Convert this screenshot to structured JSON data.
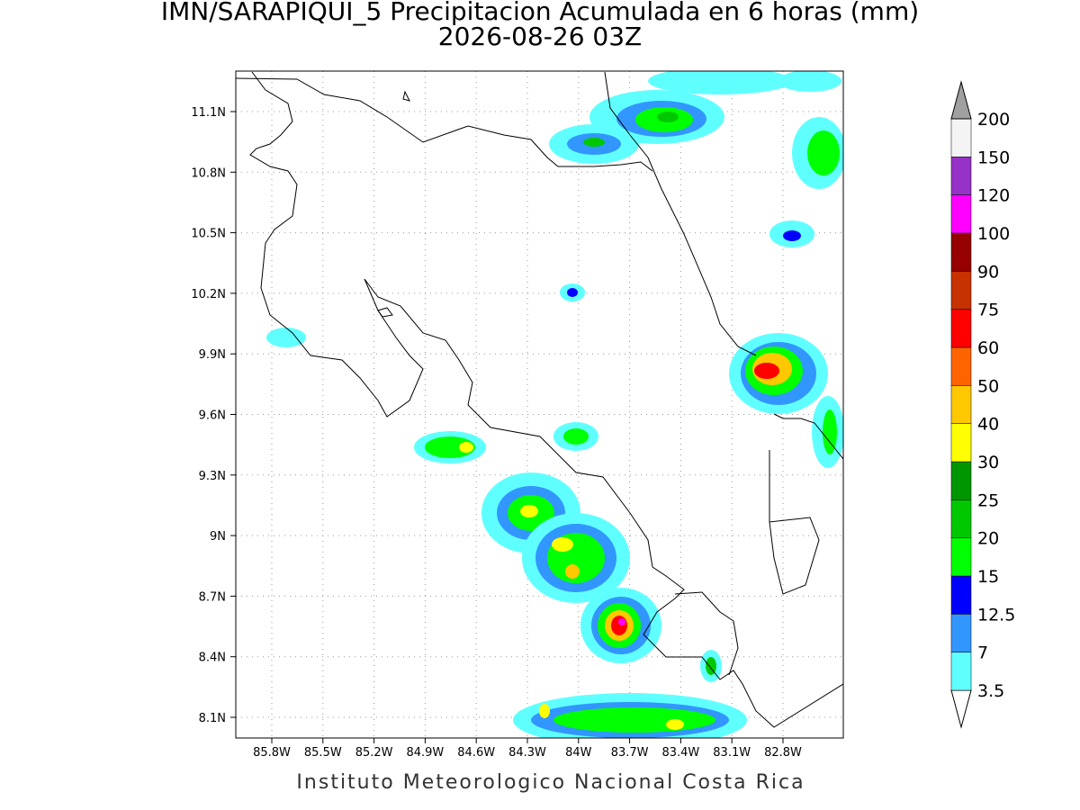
{
  "header": {
    "title": "IMN/SARAPIQUI_5 Precipitacion Acumulada en 6 horas (mm)",
    "subtitle": "2026-08-26 03Z"
  },
  "map": {
    "lon_ticks": [
      {
        "value": -85.8,
        "label": "85.8W"
      },
      {
        "value": -85.5,
        "label": "85.5W"
      },
      {
        "value": -85.2,
        "label": "85.2W"
      },
      {
        "value": -84.9,
        "label": "84.9W"
      },
      {
        "value": -84.6,
        "label": "84.6W"
      },
      {
        "value": -84.3,
        "label": "84.3W"
      },
      {
        "value": -84,
        "label": "84W"
      },
      {
        "value": -83.7,
        "label": "83.7W"
      },
      {
        "value": -83.4,
        "label": "83.4W"
      },
      {
        "value": -83.1,
        "label": "83.1W"
      },
      {
        "value": -82.8,
        "label": "82.8W"
      }
    ],
    "lat_ticks": [
      {
        "value": 11.1,
        "label": "11.1N"
      },
      {
        "value": 10.8,
        "label": "10.8N"
      },
      {
        "value": 10.5,
        "label": "10.5N"
      },
      {
        "value": 10.2,
        "label": "10.2N"
      },
      {
        "value": 9.9,
        "label": "9.9N"
      },
      {
        "value": 9.6,
        "label": "9.6N"
      },
      {
        "value": 9.3,
        "label": "9.3N"
      },
      {
        "value": 9,
        "label": "9N"
      },
      {
        "value": 8.7,
        "label": "8.7N"
      },
      {
        "value": 8.4,
        "label": "8.4N"
      },
      {
        "value": 8.1,
        "label": "8.1N"
      }
    ]
  },
  "colorbar": {
    "levels": [
      3.5,
      7,
      12.5,
      15,
      20,
      25,
      30,
      40,
      50,
      60,
      75,
      90,
      100,
      120,
      150,
      200
    ],
    "colors": [
      "#ffffff",
      "#60ffff",
      "#3296ff",
      "#0000ff",
      "#00ff00",
      "#00c800",
      "#009600",
      "#ffff00",
      "#ffc800",
      "#ff6400",
      "#ff0000",
      "#c83200",
      "#960000",
      "#ff00ff",
      "#9632c8",
      "#f4f4f4",
      "#a0a0a0"
    ]
  },
  "footer": "Instituto Meteorologico Nacional Costa Rica"
}
